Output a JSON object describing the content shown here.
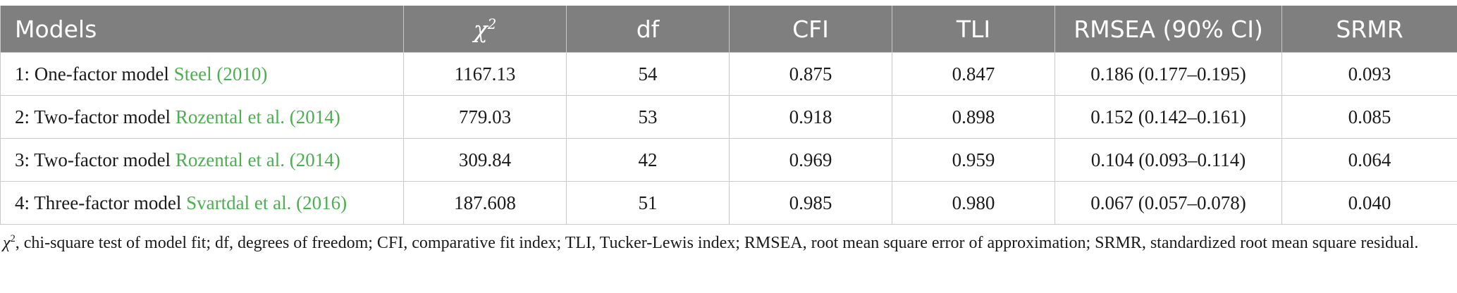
{
  "table": {
    "headers": {
      "models": "Models",
      "chi_symbol": "χ",
      "chi_sup": "2",
      "df": "df",
      "cfi": "CFI",
      "tli": "TLI",
      "rmsea": "RMSEA (90% CI)",
      "srmr": "SRMR"
    },
    "rows": [
      {
        "model": "1: One-factor model ",
        "citation": "Steel (2010)",
        "chi2": "1167.13",
        "df": "54",
        "cfi": "0.875",
        "tli": "0.847",
        "rmsea": "0.186 (0.177–0.195)",
        "srmr": "0.093"
      },
      {
        "model": "2: Two-factor model ",
        "citation": "Rozental et al. (2014)",
        "chi2": "779.03",
        "df": "53",
        "cfi": "0.918",
        "tli": "0.898",
        "rmsea": "0.152 (0.142–0.161)",
        "srmr": "0.085"
      },
      {
        "model": "3: Two-factor model ",
        "citation": "Rozental et al. (2014)",
        "chi2": "309.84",
        "df": "42",
        "cfi": "0.969",
        "tli": "0.959",
        "rmsea": "0.104 (0.093–0.114)",
        "srmr": "0.064"
      },
      {
        "model": "4: Three-factor model ",
        "citation": "Svartdal et al. (2016)",
        "chi2": "187.608",
        "df": "51",
        "cfi": "0.985",
        "tli": "0.980",
        "rmsea": "0.067 (0.057–0.078)",
        "srmr": "0.040"
      }
    ]
  },
  "footnote": {
    "symbol": "χ",
    "sup": "2",
    "text": ", chi-square test of model fit; df, degrees of freedom; CFI, comparative fit index; TLI, Tucker-Lewis index; RMSEA, root mean square error of approximation; SRMR, standardized root mean square residual."
  },
  "colors": {
    "header_bg": "#7f7f7f",
    "header_text": "#ffffff",
    "citation": "#4caf50",
    "grid": "#c9c9c9"
  }
}
